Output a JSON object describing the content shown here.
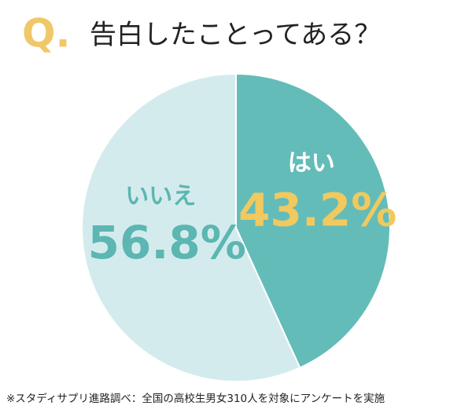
{
  "chart_data": {
    "type": "pie",
    "title_prefix": "Q.",
    "title": "告白したことってある？",
    "categories": [
      "はい",
      "いいえ"
    ],
    "values": [
      43.2,
      56.8
    ],
    "value_labels": [
      "43.2%",
      "56.8%"
    ],
    "colors": [
      "#64bcb9",
      "#d4ebee"
    ],
    "category_label_colors": [
      "#ffffff",
      "#5cb6b1"
    ],
    "value_label_colors": [
      "#f1c95e",
      "#5cb6b1"
    ],
    "note": "※スタディサプリ進路調べ：全国の高校生男女310人を対象にアンケートを実施"
  }
}
